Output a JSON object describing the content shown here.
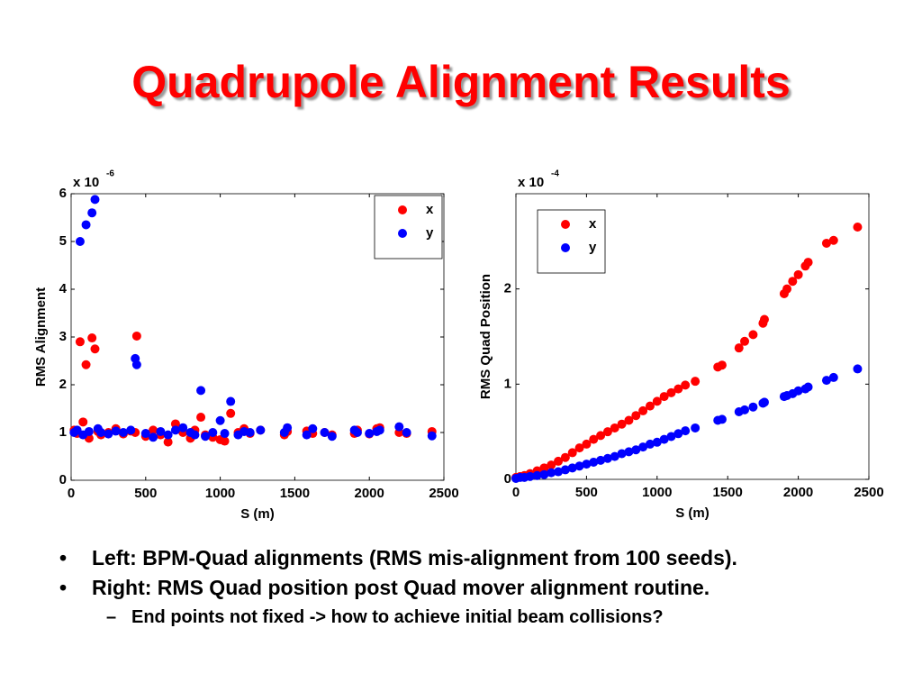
{
  "title": "Quadrupole Alignment Results",
  "chart_data": [
    {
      "type": "scatter",
      "xlabel": "S (m)",
      "ylabel": "RMS Alignment",
      "y_scale_label": {
        "base": "x 10",
        "exponent": "-6"
      },
      "xlim": [
        0,
        2500
      ],
      "ylim": [
        0,
        6
      ],
      "xticks": [
        0,
        500,
        1000,
        1500,
        2000,
        2500
      ],
      "yticks": [
        0,
        1,
        2,
        3,
        4,
        5,
        6
      ],
      "legend": "upper right",
      "x": [
        20,
        40,
        60,
        80,
        100,
        120,
        140,
        160,
        180,
        200,
        250,
        300,
        350,
        400,
        430,
        440,
        500,
        550,
        600,
        650,
        700,
        750,
        800,
        830,
        870,
        900,
        950,
        1000,
        1030,
        1070,
        1120,
        1160,
        1200,
        1270,
        1430,
        1450,
        1580,
        1620,
        1700,
        1750,
        1900,
        1920,
        2000,
        2050,
        2070,
        2200,
        2250,
        2420
      ],
      "series": [
        {
          "name": "x",
          "color": "#ff0000",
          "values": [
            1.05,
            0.98,
            2.9,
            1.22,
            2.42,
            0.88,
            2.98,
            2.75,
            1.02,
            0.95,
            1.0,
            1.08,
            0.97,
            1.03,
            1.0,
            3.02,
            0.92,
            1.05,
            0.95,
            0.8,
            1.18,
            1.0,
            0.88,
            1.05,
            1.32,
            0.95,
            0.9,
            0.85,
            0.82,
            1.4,
            1.0,
            1.08,
            0.98,
            1.05,
            0.95,
            1.02,
            1.03,
            0.98,
            1.0,
            0.95,
            0.98,
            1.05,
            0.97,
            1.08,
            1.1,
            1.0,
            0.98,
            1.02
          ]
        },
        {
          "name": "y",
          "color": "#0000ff",
          "values": [
            1.0,
            1.05,
            5.0,
            0.95,
            5.35,
            1.02,
            5.6,
            5.88,
            1.08,
            1.0,
            0.97,
            1.03,
            1.0,
            1.05,
            2.55,
            2.42,
            0.98,
            0.9,
            1.02,
            0.95,
            1.05,
            1.1,
            1.0,
            0.95,
            1.88,
            0.92,
            1.0,
            1.25,
            0.98,
            1.65,
            0.95,
            1.02,
            1.0,
            1.05,
            1.0,
            1.1,
            0.95,
            1.08,
            1.0,
            0.92,
            1.05,
            1.0,
            0.98,
            1.02,
            1.05,
            1.12,
            1.0,
            0.93
          ]
        }
      ]
    },
    {
      "type": "scatter",
      "xlabel": "S (m)",
      "ylabel": "RMS Quad Position",
      "y_scale_label": {
        "base": "x 10",
        "exponent": "-4"
      },
      "xlim": [
        0,
        2500
      ],
      "ylim": [
        0,
        3
      ],
      "xticks": [
        0,
        500,
        1000,
        1500,
        2000,
        2500
      ],
      "yticks": [
        0,
        1,
        2
      ],
      "legend": "upper left",
      "x": [
        0,
        30,
        60,
        100,
        150,
        200,
        250,
        300,
        350,
        400,
        450,
        500,
        550,
        600,
        650,
        700,
        750,
        800,
        850,
        900,
        950,
        1000,
        1050,
        1100,
        1150,
        1200,
        1270,
        1430,
        1460,
        1580,
        1620,
        1680,
        1750,
        1760,
        1900,
        1920,
        1960,
        2000,
        2050,
        2070,
        2200,
        2250,
        2420
      ],
      "series": [
        {
          "name": "x",
          "color": "#ff0000",
          "values": [
            0.02,
            0.03,
            0.04,
            0.06,
            0.09,
            0.12,
            0.15,
            0.19,
            0.23,
            0.28,
            0.33,
            0.37,
            0.42,
            0.46,
            0.5,
            0.54,
            0.58,
            0.62,
            0.67,
            0.72,
            0.77,
            0.82,
            0.87,
            0.91,
            0.95,
            0.99,
            1.03,
            1.18,
            1.2,
            1.38,
            1.45,
            1.52,
            1.64,
            1.68,
            1.95,
            2.0,
            2.08,
            2.15,
            2.24,
            2.28,
            2.48,
            2.51,
            2.65
          ]
        },
        {
          "name": "y",
          "color": "#0000ff",
          "values": [
            0.01,
            0.02,
            0.02,
            0.03,
            0.04,
            0.05,
            0.07,
            0.08,
            0.1,
            0.12,
            0.14,
            0.16,
            0.18,
            0.2,
            0.22,
            0.24,
            0.27,
            0.29,
            0.31,
            0.34,
            0.37,
            0.39,
            0.42,
            0.45,
            0.48,
            0.51,
            0.54,
            0.62,
            0.63,
            0.71,
            0.73,
            0.76,
            0.8,
            0.81,
            0.87,
            0.88,
            0.9,
            0.93,
            0.95,
            0.97,
            1.04,
            1.07,
            1.16
          ]
        }
      ]
    }
  ],
  "bullets": [
    {
      "text": "Left: BPM-Quad alignments (RMS mis-alignment from 100 seeds)."
    },
    {
      "text": "Right: RMS Quad position post Quad mover alignment routine.",
      "sub": [
        "End points not fixed -> how to achieve initial beam collisions?"
      ]
    }
  ]
}
